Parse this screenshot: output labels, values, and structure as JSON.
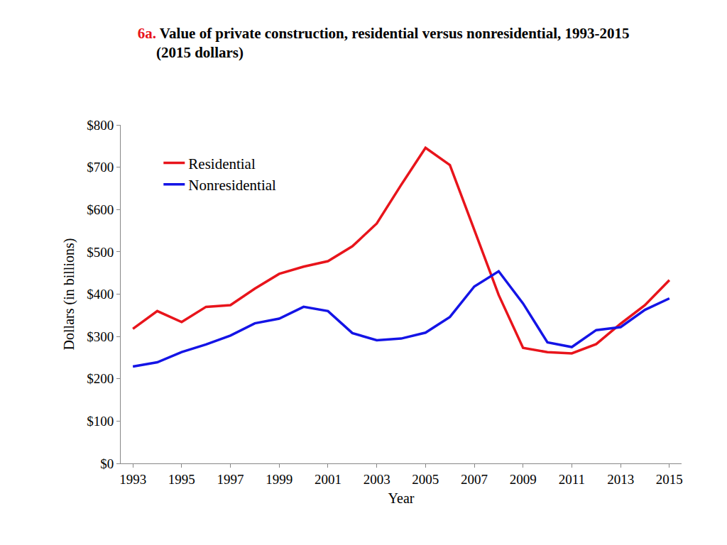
{
  "chart_data": {
    "type": "line",
    "title": "6a. Value of private construction, residential versus nonresidential, 1993-2015",
    "subtitle": "(2015 dollars)",
    "x_label": "Year",
    "y_label": "Dollars (in billions)",
    "x": [
      1993,
      1994,
      1995,
      1996,
      1997,
      1998,
      1999,
      2000,
      2001,
      2002,
      2003,
      2004,
      2005,
      2006,
      2007,
      2008,
      2009,
      2010,
      2011,
      2012,
      2013,
      2014,
      2015
    ],
    "series": [
      {
        "name": "Residential",
        "color": "#e8141b",
        "values": [
          318,
          360,
          334,
          370,
          374,
          413,
          448,
          465,
          478,
          513,
          567,
          658,
          746,
          705,
          552,
          398,
          273,
          263,
          260,
          282,
          330,
          374,
          433
        ]
      },
      {
        "name": "Nonresidential",
        "color": "#1414e6",
        "values": [
          229,
          239,
          263,
          281,
          302,
          331,
          342,
          370,
          360,
          308,
          291,
          295,
          309,
          346,
          418,
          454,
          378,
          286,
          275,
          315,
          322,
          363,
          390
        ]
      }
    ],
    "xlim": [
      1992.5,
      2015.5
    ],
    "xticks": [
      1993,
      1995,
      1997,
      1999,
      2001,
      2003,
      2005,
      2007,
      2009,
      2011,
      2013,
      2015
    ],
    "ylim": [
      0,
      800
    ],
    "yticks": [
      {
        "value": 0,
        "label": "$0"
      },
      {
        "value": 100,
        "label": "$100"
      },
      {
        "value": 200,
        "label": "$200"
      },
      {
        "value": 300,
        "label": "$300"
      },
      {
        "value": 400,
        "label": "$400"
      },
      {
        "value": 500,
        "label": "$500"
      },
      {
        "value": 600,
        "label": "$600"
      },
      {
        "value": 700,
        "label": "$700"
      },
      {
        "value": 800,
        "label": "$800"
      }
    ],
    "grid": false,
    "legend": "top left"
  }
}
